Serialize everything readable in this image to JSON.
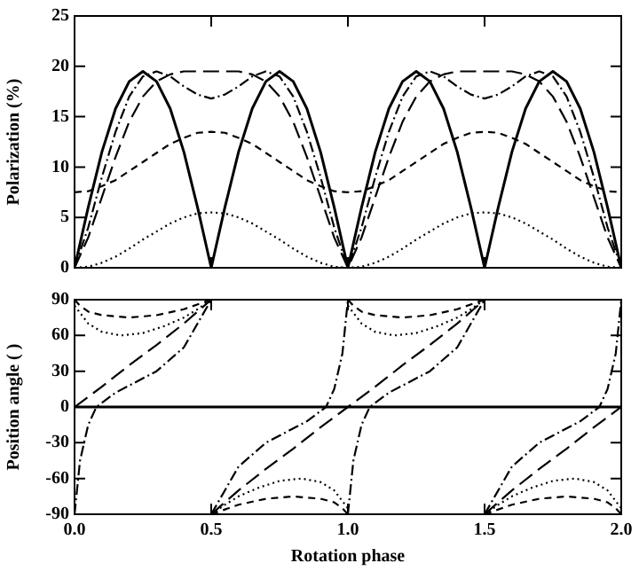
{
  "chart_data": [
    {
      "type": "line",
      "ylabel": "Polarization (%)",
      "xlim": [
        0,
        2
      ],
      "xticks": [
        0,
        0.5,
        1,
        1.5,
        2
      ],
      "ylim": [
        0,
        25
      ],
      "yticks": [
        0,
        5,
        10,
        15,
        20,
        25
      ],
      "tick_labels": "y",
      "grid": false,
      "legend": false,
      "marker": "none",
      "x": [
        0,
        0.05,
        0.1,
        0.15,
        0.2,
        0.25,
        0.3,
        0.35,
        0.4,
        0.45,
        0.5,
        0.55,
        0.6,
        0.65,
        0.7,
        0.75,
        0.8,
        0.85,
        0.9,
        0.95,
        1,
        1.05,
        1.1,
        1.15,
        1.2,
        1.25,
        1.3,
        1.35,
        1.4,
        1.45,
        1.5,
        1.55,
        1.6,
        1.65,
        1.7,
        1.75,
        1.8,
        1.85,
        1.9,
        1.95,
        2
      ],
      "series": [
        {
          "color": "#000000",
          "line_style": "solid",
          "values": [
            0,
            6,
            11.5,
            15.8,
            18.5,
            19.5,
            18.5,
            15.8,
            11.5,
            6,
            0,
            6,
            11.5,
            15.8,
            18.5,
            19.5,
            18.5,
            15.8,
            11.5,
            6,
            0,
            6,
            11.5,
            15.8,
            18.5,
            19.5,
            18.5,
            15.8,
            11.5,
            6,
            0,
            6,
            11.5,
            15.8,
            18.5,
            19.5,
            18.5,
            15.8,
            11.5,
            6,
            0
          ]
        },
        {
          "color": "#000000",
          "line_style": "dotted",
          "values": [
            0,
            0.1,
            0.5,
            1.1,
            1.9,
            2.8,
            3.6,
            4.4,
            5,
            5.4,
            5.5,
            5.4,
            5,
            4.4,
            3.6,
            2.8,
            1.9,
            1.1,
            0.5,
            0.1,
            0,
            0.1,
            0.5,
            1.1,
            1.9,
            2.8,
            3.6,
            4.4,
            5,
            5.4,
            5.5,
            5.4,
            5,
            4.4,
            3.6,
            2.8,
            1.9,
            1.1,
            0.5,
            0.1,
            0
          ]
        },
        {
          "color": "#000000",
          "line_style": "dashed",
          "values": [
            7.5,
            7.6,
            8.1,
            8.7,
            9.6,
            10.5,
            11.4,
            12.3,
            12.9,
            13.4,
            13.5,
            13.4,
            12.9,
            12.3,
            11.4,
            10.5,
            9.6,
            8.7,
            8.1,
            7.6,
            7.5,
            7.6,
            8.1,
            8.7,
            9.6,
            10.5,
            11.4,
            12.3,
            12.9,
            13.4,
            13.5,
            13.4,
            12.9,
            12.3,
            11.4,
            10.5,
            9.6,
            8.7,
            8.1,
            7.6,
            7.5
          ]
        },
        {
          "color": "#000000",
          "line_style": "dashdot",
          "values": [
            0,
            4,
            9,
            13.5,
            17,
            19,
            19.5,
            19,
            18,
            17.2,
            16.8,
            17.2,
            18,
            19,
            19.5,
            19,
            17,
            13.5,
            9,
            4,
            0,
            4,
            9,
            13.5,
            17,
            19,
            19.5,
            19,
            18,
            17.2,
            16.8,
            17.2,
            18,
            19,
            19.5,
            19,
            17,
            13.5,
            9,
            4,
            0
          ]
        },
        {
          "color": "#000000",
          "line_style": "longdash",
          "values": [
            0,
            3,
            7,
            11,
            14.5,
            17,
            18.5,
            19.2,
            19.5,
            19.5,
            19.5,
            19.5,
            19.5,
            19.2,
            18.5,
            17,
            14.5,
            11,
            7,
            3,
            0,
            3,
            7,
            11,
            14.5,
            17,
            18.5,
            19.2,
            19.5,
            19.5,
            19.5,
            19.5,
            19.5,
            19.2,
            18.5,
            17,
            14.5,
            11,
            7,
            3,
            0
          ]
        }
      ]
    },
    {
      "type": "line",
      "xlabel": "Rotation phase",
      "ylabel": "Position angle ( )",
      "xlim": [
        0,
        2
      ],
      "xticks": [
        {
          "value": 0,
          "label": "0.0"
        },
        0.5,
        {
          "value": 1,
          "label": "1.0"
        },
        1.5,
        {
          "value": 2,
          "label": "2.0"
        }
      ],
      "ylim": [
        -90,
        90
      ],
      "yticks": [
        -90,
        -60,
        -30,
        0,
        30,
        60,
        90
      ],
      "grid": false,
      "legend": false,
      "marker": "none",
      "series": [
        {
          "color": "#000000",
          "line_style": "solid",
          "x": [
            0,
            2
          ],
          "values": [
            0,
            0
          ]
        },
        {
          "color": "#000000",
          "line_style": "dotted",
          "x": [
            0,
            0.02,
            0.05,
            0.1,
            0.17,
            0.25,
            0.33,
            0.4,
            0.45,
            0.5
          ],
          "values": [
            85,
            79,
            70,
            63,
            60,
            62,
            68,
            75,
            82,
            90
          ]
        },
        {
          "color": "#000000",
          "line_style": "dotted",
          "x": [
            0.5,
            0.55,
            0.6,
            0.67,
            0.75,
            0.83,
            0.9,
            0.95,
            0.98,
            1
          ],
          "values": [
            -90,
            -82,
            -75,
            -68,
            -62,
            -60,
            -63,
            -70,
            -79,
            -85
          ]
        },
        {
          "color": "#000000",
          "line_style": "dotted",
          "x": [
            1,
            1.02,
            1.05,
            1.1,
            1.17,
            1.25,
            1.33,
            1.4,
            1.45,
            1.5
          ],
          "values": [
            85,
            79,
            70,
            63,
            60,
            62,
            68,
            75,
            82,
            90
          ]
        },
        {
          "color": "#000000",
          "line_style": "dotted",
          "x": [
            1.5,
            1.55,
            1.6,
            1.67,
            1.75,
            1.83,
            1.9,
            1.95,
            1.98,
            2
          ],
          "values": [
            -90,
            -82,
            -75,
            -68,
            -62,
            -60,
            -63,
            -70,
            -79,
            -85
          ]
        },
        {
          "color": "#000000",
          "line_style": "dashed",
          "x": [
            0,
            0.02,
            0.05,
            0.1,
            0.2,
            0.3,
            0.4,
            0.5
          ],
          "values": [
            90,
            85,
            80,
            77,
            75,
            77,
            82,
            90
          ]
        },
        {
          "color": "#000000",
          "line_style": "dashed",
          "x": [
            0.5,
            0.6,
            0.7,
            0.8,
            0.9,
            0.95,
            0.98,
            1
          ],
          "values": [
            -90,
            -82,
            -77,
            -75,
            -77,
            -80,
            -85,
            -90
          ]
        },
        {
          "color": "#000000",
          "line_style": "dashed",
          "x": [
            1,
            1.02,
            1.05,
            1.1,
            1.2,
            1.3,
            1.4,
            1.5
          ],
          "values": [
            90,
            85,
            80,
            77,
            75,
            77,
            82,
            90
          ]
        },
        {
          "color": "#000000",
          "line_style": "dashed",
          "x": [
            1.5,
            1.6,
            1.7,
            1.8,
            1.9,
            1.95,
            1.98,
            2
          ],
          "values": [
            -90,
            -82,
            -77,
            -75,
            -77,
            -80,
            -85,
            -90
          ]
        },
        {
          "color": "#000000",
          "line_style": "dashdot",
          "x": [
            0,
            0.02,
            0.05,
            0.08,
            0.15,
            0.3,
            0.4,
            0.5
          ],
          "values": [
            -90,
            -45,
            -15,
            0,
            12,
            30,
            50,
            90
          ]
        },
        {
          "color": "#000000",
          "line_style": "dashdot",
          "x": [
            0.5,
            0.6,
            0.7,
            0.85,
            0.92,
            0.95,
            0.98,
            1
          ],
          "values": [
            -90,
            -50,
            -30,
            -12,
            0,
            15,
            45,
            90
          ]
        },
        {
          "color": "#000000",
          "line_style": "dashdot",
          "x": [
            1,
            1.02,
            1.05,
            1.08,
            1.15,
            1.3,
            1.4,
            1.5
          ],
          "values": [
            -90,
            -45,
            -15,
            0,
            12,
            30,
            50,
            90
          ]
        },
        {
          "color": "#000000",
          "line_style": "dashdot",
          "x": [
            1.5,
            1.6,
            1.7,
            1.85,
            1.92,
            1.95,
            1.98,
            2
          ],
          "values": [
            -90,
            -50,
            -30,
            -12,
            0,
            15,
            45,
            90
          ]
        },
        {
          "color": "#000000",
          "line_style": "longdash",
          "x": [
            0,
            0.1,
            0.2,
            0.3,
            0.4,
            0.5
          ],
          "values": [
            0,
            17,
            35,
            52,
            70,
            90
          ]
        },
        {
          "color": "#000000",
          "line_style": "longdash",
          "x": [
            0.5,
            0.6,
            0.7,
            0.8,
            0.9,
            1,
            1.1,
            1.2,
            1.3,
            1.4,
            1.5
          ],
          "values": [
            -90,
            -70,
            -52,
            -35,
            -17,
            0,
            17,
            35,
            52,
            70,
            90
          ]
        },
        {
          "color": "#000000",
          "line_style": "longdash",
          "x": [
            1.5,
            1.6,
            1.7,
            1.8,
            1.9,
            2
          ],
          "values": [
            -90,
            -70,
            -52,
            -35,
            -17,
            0
          ]
        }
      ]
    }
  ]
}
